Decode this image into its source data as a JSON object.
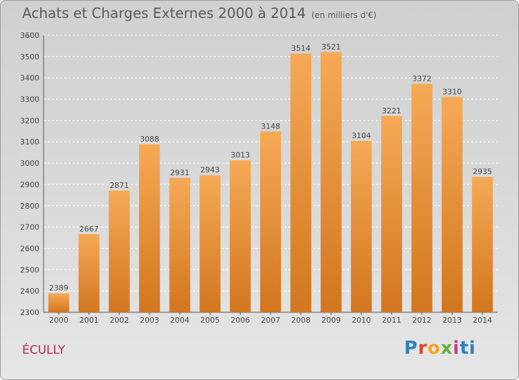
{
  "header": {
    "title": "Achats et Charges Externes 2000 à 2014",
    "subtitle": "(en milliers d'€)"
  },
  "footer": {
    "town": "ÉCULLY",
    "logo_letters": [
      "P",
      "r",
      "o",
      "x",
      "i",
      "ti"
    ]
  },
  "colors": {
    "bar_top": "#f6a955",
    "bar_bottom": "#d2761f",
    "background": "#d6d6d6",
    "gridline": "#ffffff",
    "town": "#b5294a"
  },
  "chart_data": {
    "type": "bar",
    "title": "Achats et Charges Externes 2000 à 2014",
    "subtitle": "(en milliers d'€)",
    "categories": [
      "2000",
      "2001",
      "2002",
      "2003",
      "2004",
      "2005",
      "2006",
      "2007",
      "2008",
      "2009",
      "2010",
      "2011",
      "2012",
      "2013",
      "2014"
    ],
    "values": [
      2389,
      2667,
      2871,
      3088,
      2931,
      2943,
      3013,
      3148,
      3514,
      3521,
      3104,
      3221,
      3372,
      3310,
      2935
    ],
    "ylim": [
      2300,
      3600
    ],
    "yticks": [
      2300,
      2400,
      2500,
      2600,
      2700,
      2800,
      2900,
      3000,
      3100,
      3200,
      3300,
      3400,
      3500,
      3600
    ],
    "grid": "horizontal dashed",
    "data_labels": true
  }
}
